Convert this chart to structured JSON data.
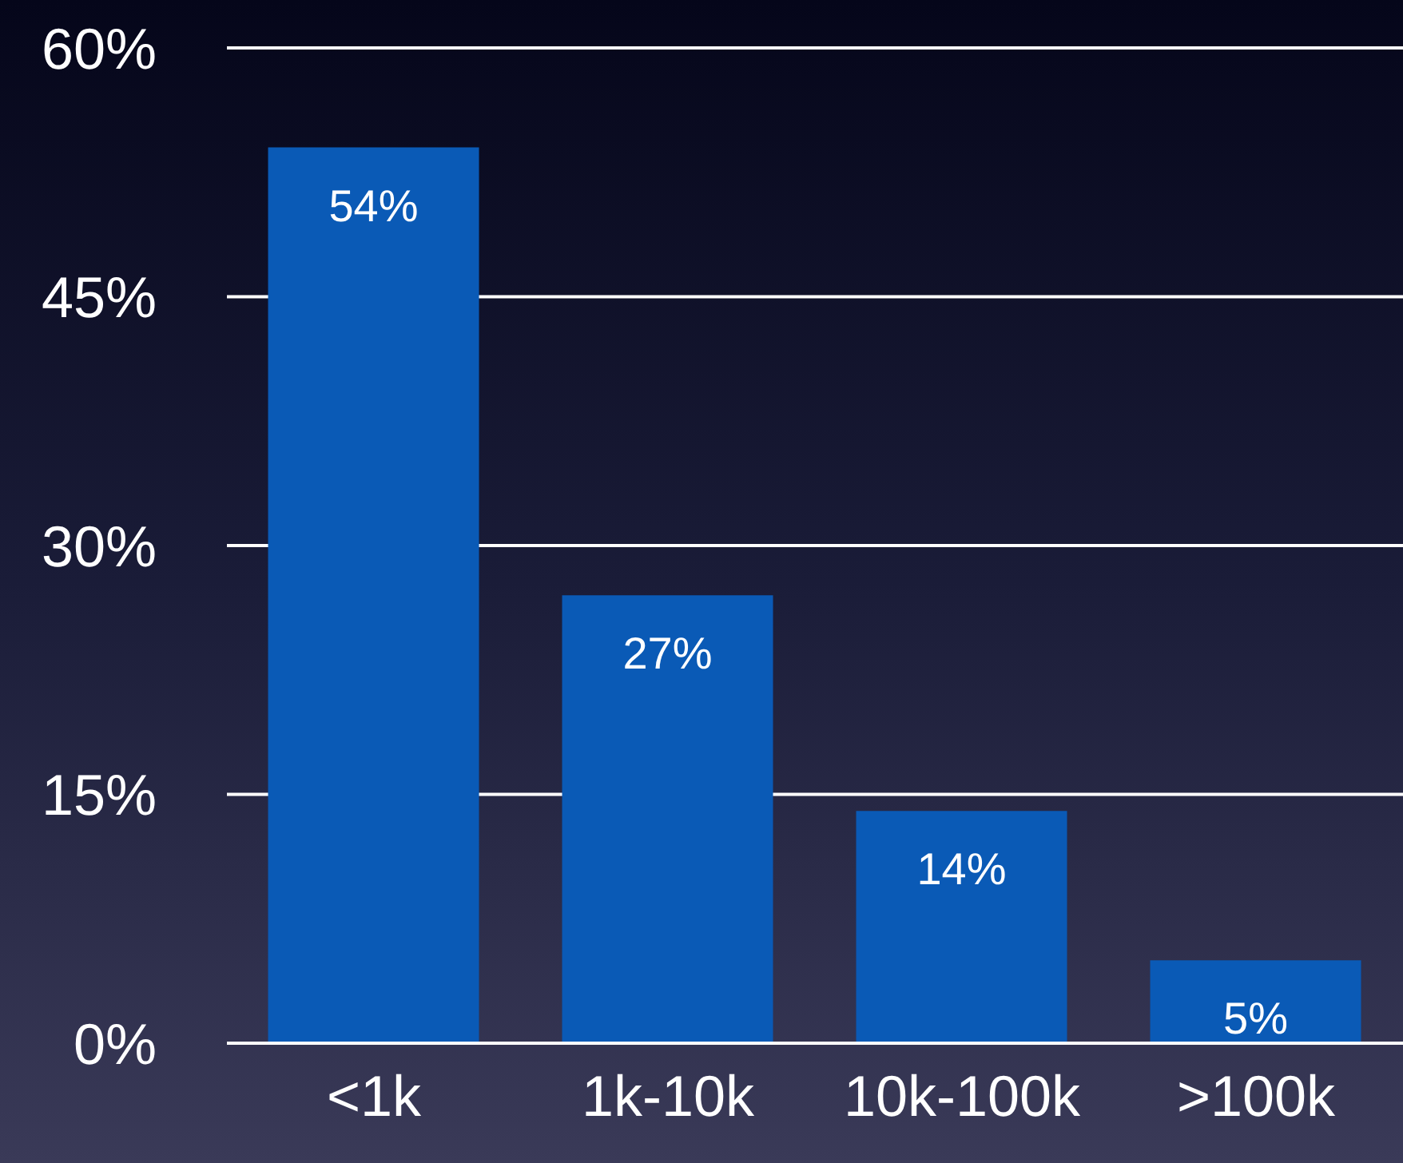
{
  "chart_data": {
    "type": "bar",
    "categories": [
      "<1k",
      "1k-10k",
      "10k-100k",
      ">100k"
    ],
    "values": [
      54,
      27,
      14,
      5
    ],
    "color": "#0a5ab6",
    "value_labels": [
      "54%",
      "27%",
      "14%",
      "5%"
    ],
    "ylim": [
      0,
      60
    ],
    "yticks": [
      {
        "value": 0,
        "label": "0%"
      },
      {
        "value": 15,
        "label": "15%"
      },
      {
        "value": 30,
        "label": "30%"
      },
      {
        "value": 45,
        "label": "45%"
      },
      {
        "value": 60,
        "label": "60%"
      }
    ],
    "grid": "y"
  }
}
